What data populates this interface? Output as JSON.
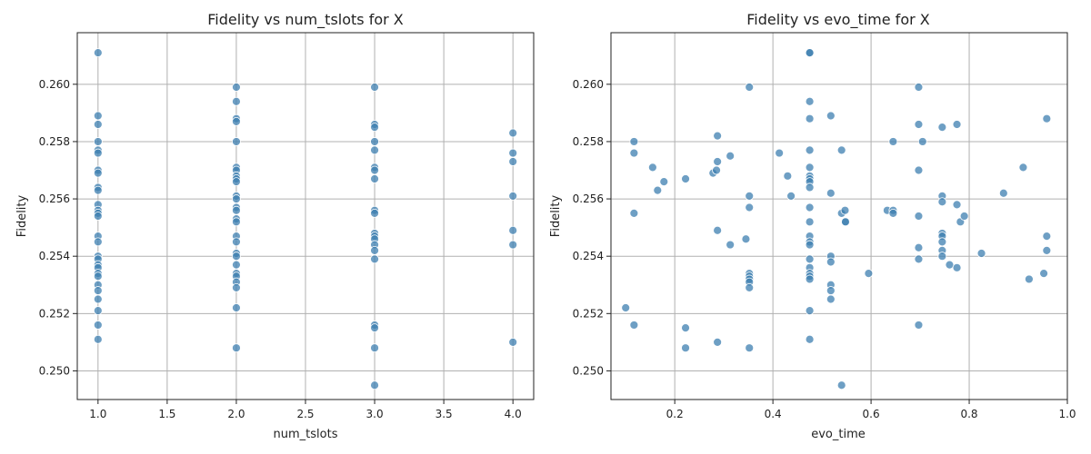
{
  "chart_data": [
    {
      "type": "scatter",
      "title": "Fidelity vs num_tslots for X",
      "xlabel": "num_tslots",
      "ylabel": "Fidelity",
      "xlim": [
        0.85,
        4.15
      ],
      "ylim": [
        0.249,
        0.2618
      ],
      "xticks": [
        1.0,
        1.5,
        2.0,
        2.5,
        3.0,
        3.5,
        4.0
      ],
      "xtick_labels": [
        "1.0",
        "1.5",
        "2.0",
        "2.5",
        "3.0",
        "3.5",
        "4.0"
      ],
      "yticks": [
        0.25,
        0.252,
        0.254,
        0.256,
        0.258,
        0.26
      ],
      "ytick_labels": [
        "0.250",
        "0.252",
        "0.254",
        "0.256",
        "0.258",
        "0.260"
      ],
      "grid": true,
      "color": "#3d7fb0",
      "points": [
        [
          1,
          0.2611
        ],
        [
          1,
          0.2589
        ],
        [
          1,
          0.2586
        ],
        [
          1,
          0.258
        ],
        [
          1,
          0.2577
        ],
        [
          1,
          0.2576
        ],
        [
          1,
          0.257
        ],
        [
          1,
          0.2569
        ],
        [
          1,
          0.2564
        ],
        [
          1,
          0.2563
        ],
        [
          1,
          0.2558
        ],
        [
          1,
          0.2556
        ],
        [
          1,
          0.2555
        ],
        [
          1,
          0.2554
        ],
        [
          1,
          0.2547
        ],
        [
          1,
          0.2545
        ],
        [
          1,
          0.254
        ],
        [
          1,
          0.2539
        ],
        [
          1,
          0.2537
        ],
        [
          1,
          0.2536
        ],
        [
          1,
          0.2534
        ],
        [
          1,
          0.2533
        ],
        [
          1,
          0.253
        ],
        [
          1,
          0.2528
        ],
        [
          1,
          0.2525
        ],
        [
          1,
          0.2521
        ],
        [
          1,
          0.2516
        ],
        [
          1,
          0.2511
        ],
        [
          2,
          0.2599
        ],
        [
          2,
          0.2594
        ],
        [
          2,
          0.2588
        ],
        [
          2,
          0.2587
        ],
        [
          2,
          0.258
        ],
        [
          2,
          0.2571
        ],
        [
          2,
          0.257
        ],
        [
          2,
          0.2568
        ],
        [
          2,
          0.2567
        ],
        [
          2,
          0.2566
        ],
        [
          2,
          0.2561
        ],
        [
          2,
          0.256
        ],
        [
          2,
          0.2557
        ],
        [
          2,
          0.2556
        ],
        [
          2,
          0.2553
        ],
        [
          2,
          0.2552
        ],
        [
          2,
          0.2547
        ],
        [
          2,
          0.2545
        ],
        [
          2,
          0.2541
        ],
        [
          2,
          0.254
        ],
        [
          2,
          0.2537
        ],
        [
          2,
          0.2534
        ],
        [
          2,
          0.2533
        ],
        [
          2,
          0.2531
        ],
        [
          2,
          0.2529
        ],
        [
          2,
          0.2522
        ],
        [
          2,
          0.2508
        ],
        [
          3,
          0.2599
        ],
        [
          3,
          0.2586
        ],
        [
          3,
          0.2585
        ],
        [
          3,
          0.258
        ],
        [
          3,
          0.2577
        ],
        [
          3,
          0.2571
        ],
        [
          3,
          0.257
        ],
        [
          3,
          0.2567
        ],
        [
          3,
          0.2556
        ],
        [
          3,
          0.2555
        ],
        [
          3,
          0.2548
        ],
        [
          3,
          0.2547
        ],
        [
          3,
          0.2546
        ],
        [
          3,
          0.2544
        ],
        [
          3,
          0.2542
        ],
        [
          3,
          0.2539
        ],
        [
          3,
          0.2516
        ],
        [
          3,
          0.2515
        ],
        [
          3,
          0.2508
        ],
        [
          3,
          0.2495
        ],
        [
          4,
          0.2583
        ],
        [
          4,
          0.2576
        ],
        [
          4,
          0.2573
        ],
        [
          4,
          0.2561
        ],
        [
          4,
          0.2549
        ],
        [
          4,
          0.2544
        ],
        [
          4,
          0.251
        ]
      ]
    },
    {
      "type": "scatter",
      "title": "Fidelity vs evo_time for X",
      "xlabel": "evo_time",
      "ylabel": "Fidelity",
      "xlim": [
        0.07,
        1.0
      ],
      "ylim": [
        0.249,
        0.2618
      ],
      "xticks": [
        0.2,
        0.4,
        0.6,
        0.8,
        1.0
      ],
      "xtick_labels": [
        "0.2",
        "0.4",
        "0.6",
        "0.8",
        "1.0"
      ],
      "yticks": [
        0.25,
        0.252,
        0.254,
        0.256,
        0.258,
        0.26
      ],
      "ytick_labels": [
        "0.250",
        "0.252",
        "0.254",
        "0.256",
        "0.258",
        "0.260"
      ],
      "grid": true,
      "color": "#3d7fb0",
      "points": [
        [
          0.1,
          0.2522
        ],
        [
          0.117,
          0.258
        ],
        [
          0.117,
          0.2576
        ],
        [
          0.117,
          0.2555
        ],
        [
          0.117,
          0.2516
        ],
        [
          0.155,
          0.2571
        ],
        [
          0.165,
          0.2563
        ],
        [
          0.178,
          0.2566
        ],
        [
          0.222,
          0.2567
        ],
        [
          0.222,
          0.2515
        ],
        [
          0.222,
          0.2508
        ],
        [
          0.278,
          0.2569
        ],
        [
          0.285,
          0.257
        ],
        [
          0.287,
          0.2582
        ],
        [
          0.287,
          0.2573
        ],
        [
          0.287,
          0.2549
        ],
        [
          0.287,
          0.251
        ],
        [
          0.313,
          0.2575
        ],
        [
          0.313,
          0.2544
        ],
        [
          0.345,
          0.2546
        ],
        [
          0.352,
          0.2599
        ],
        [
          0.352,
          0.2561
        ],
        [
          0.352,
          0.2557
        ],
        [
          0.352,
          0.2534
        ],
        [
          0.352,
          0.2533
        ],
        [
          0.352,
          0.2532
        ],
        [
          0.352,
          0.2531
        ],
        [
          0.352,
          0.2529
        ],
        [
          0.352,
          0.2508
        ],
        [
          0.413,
          0.2576
        ],
        [
          0.43,
          0.2568
        ],
        [
          0.437,
          0.2561
        ],
        [
          0.475,
          0.2611
        ],
        [
          0.475,
          0.2611
        ],
        [
          0.475,
          0.2594
        ],
        [
          0.475,
          0.2588
        ],
        [
          0.475,
          0.2577
        ],
        [
          0.475,
          0.2571
        ],
        [
          0.475,
          0.2568
        ],
        [
          0.475,
          0.2567
        ],
        [
          0.475,
          0.2566
        ],
        [
          0.475,
          0.2564
        ],
        [
          0.475,
          0.2557
        ],
        [
          0.475,
          0.2552
        ],
        [
          0.475,
          0.2547
        ],
        [
          0.475,
          0.2545
        ],
        [
          0.475,
          0.2544
        ],
        [
          0.475,
          0.2539
        ],
        [
          0.475,
          0.2536
        ],
        [
          0.475,
          0.2534
        ],
        [
          0.475,
          0.2533
        ],
        [
          0.475,
          0.2532
        ],
        [
          0.475,
          0.2521
        ],
        [
          0.475,
          0.2511
        ],
        [
          0.518,
          0.2589
        ],
        [
          0.518,
          0.2562
        ],
        [
          0.518,
          0.254
        ],
        [
          0.518,
          0.2538
        ],
        [
          0.518,
          0.253
        ],
        [
          0.518,
          0.2528
        ],
        [
          0.518,
          0.2525
        ],
        [
          0.54,
          0.2577
        ],
        [
          0.54,
          0.2555
        ],
        [
          0.54,
          0.2495
        ],
        [
          0.547,
          0.2556
        ],
        [
          0.547,
          0.2552
        ],
        [
          0.548,
          0.2552
        ],
        [
          0.595,
          0.2534
        ],
        [
          0.633,
          0.2556
        ],
        [
          0.645,
          0.258
        ],
        [
          0.645,
          0.2556
        ],
        [
          0.645,
          0.2555
        ],
        [
          0.697,
          0.2599
        ],
        [
          0.697,
          0.2586
        ],
        [
          0.697,
          0.257
        ],
        [
          0.697,
          0.2554
        ],
        [
          0.697,
          0.2543
        ],
        [
          0.697,
          0.2539
        ],
        [
          0.697,
          0.2516
        ],
        [
          0.705,
          0.258
        ],
        [
          0.745,
          0.2585
        ],
        [
          0.745,
          0.2561
        ],
        [
          0.745,
          0.2559
        ],
        [
          0.745,
          0.2548
        ],
        [
          0.745,
          0.2547
        ],
        [
          0.745,
          0.2545
        ],
        [
          0.745,
          0.2542
        ],
        [
          0.745,
          0.254
        ],
        [
          0.76,
          0.2537
        ],
        [
          0.775,
          0.2586
        ],
        [
          0.775,
          0.2558
        ],
        [
          0.775,
          0.2536
        ],
        [
          0.782,
          0.2552
        ],
        [
          0.79,
          0.2554
        ],
        [
          0.825,
          0.2541
        ],
        [
          0.87,
          0.2562
        ],
        [
          0.91,
          0.2571
        ],
        [
          0.922,
          0.2532
        ],
        [
          0.952,
          0.2534
        ],
        [
          0.958,
          0.2588
        ],
        [
          0.958,
          0.2547
        ],
        [
          0.958,
          0.2542
        ]
      ]
    }
  ]
}
